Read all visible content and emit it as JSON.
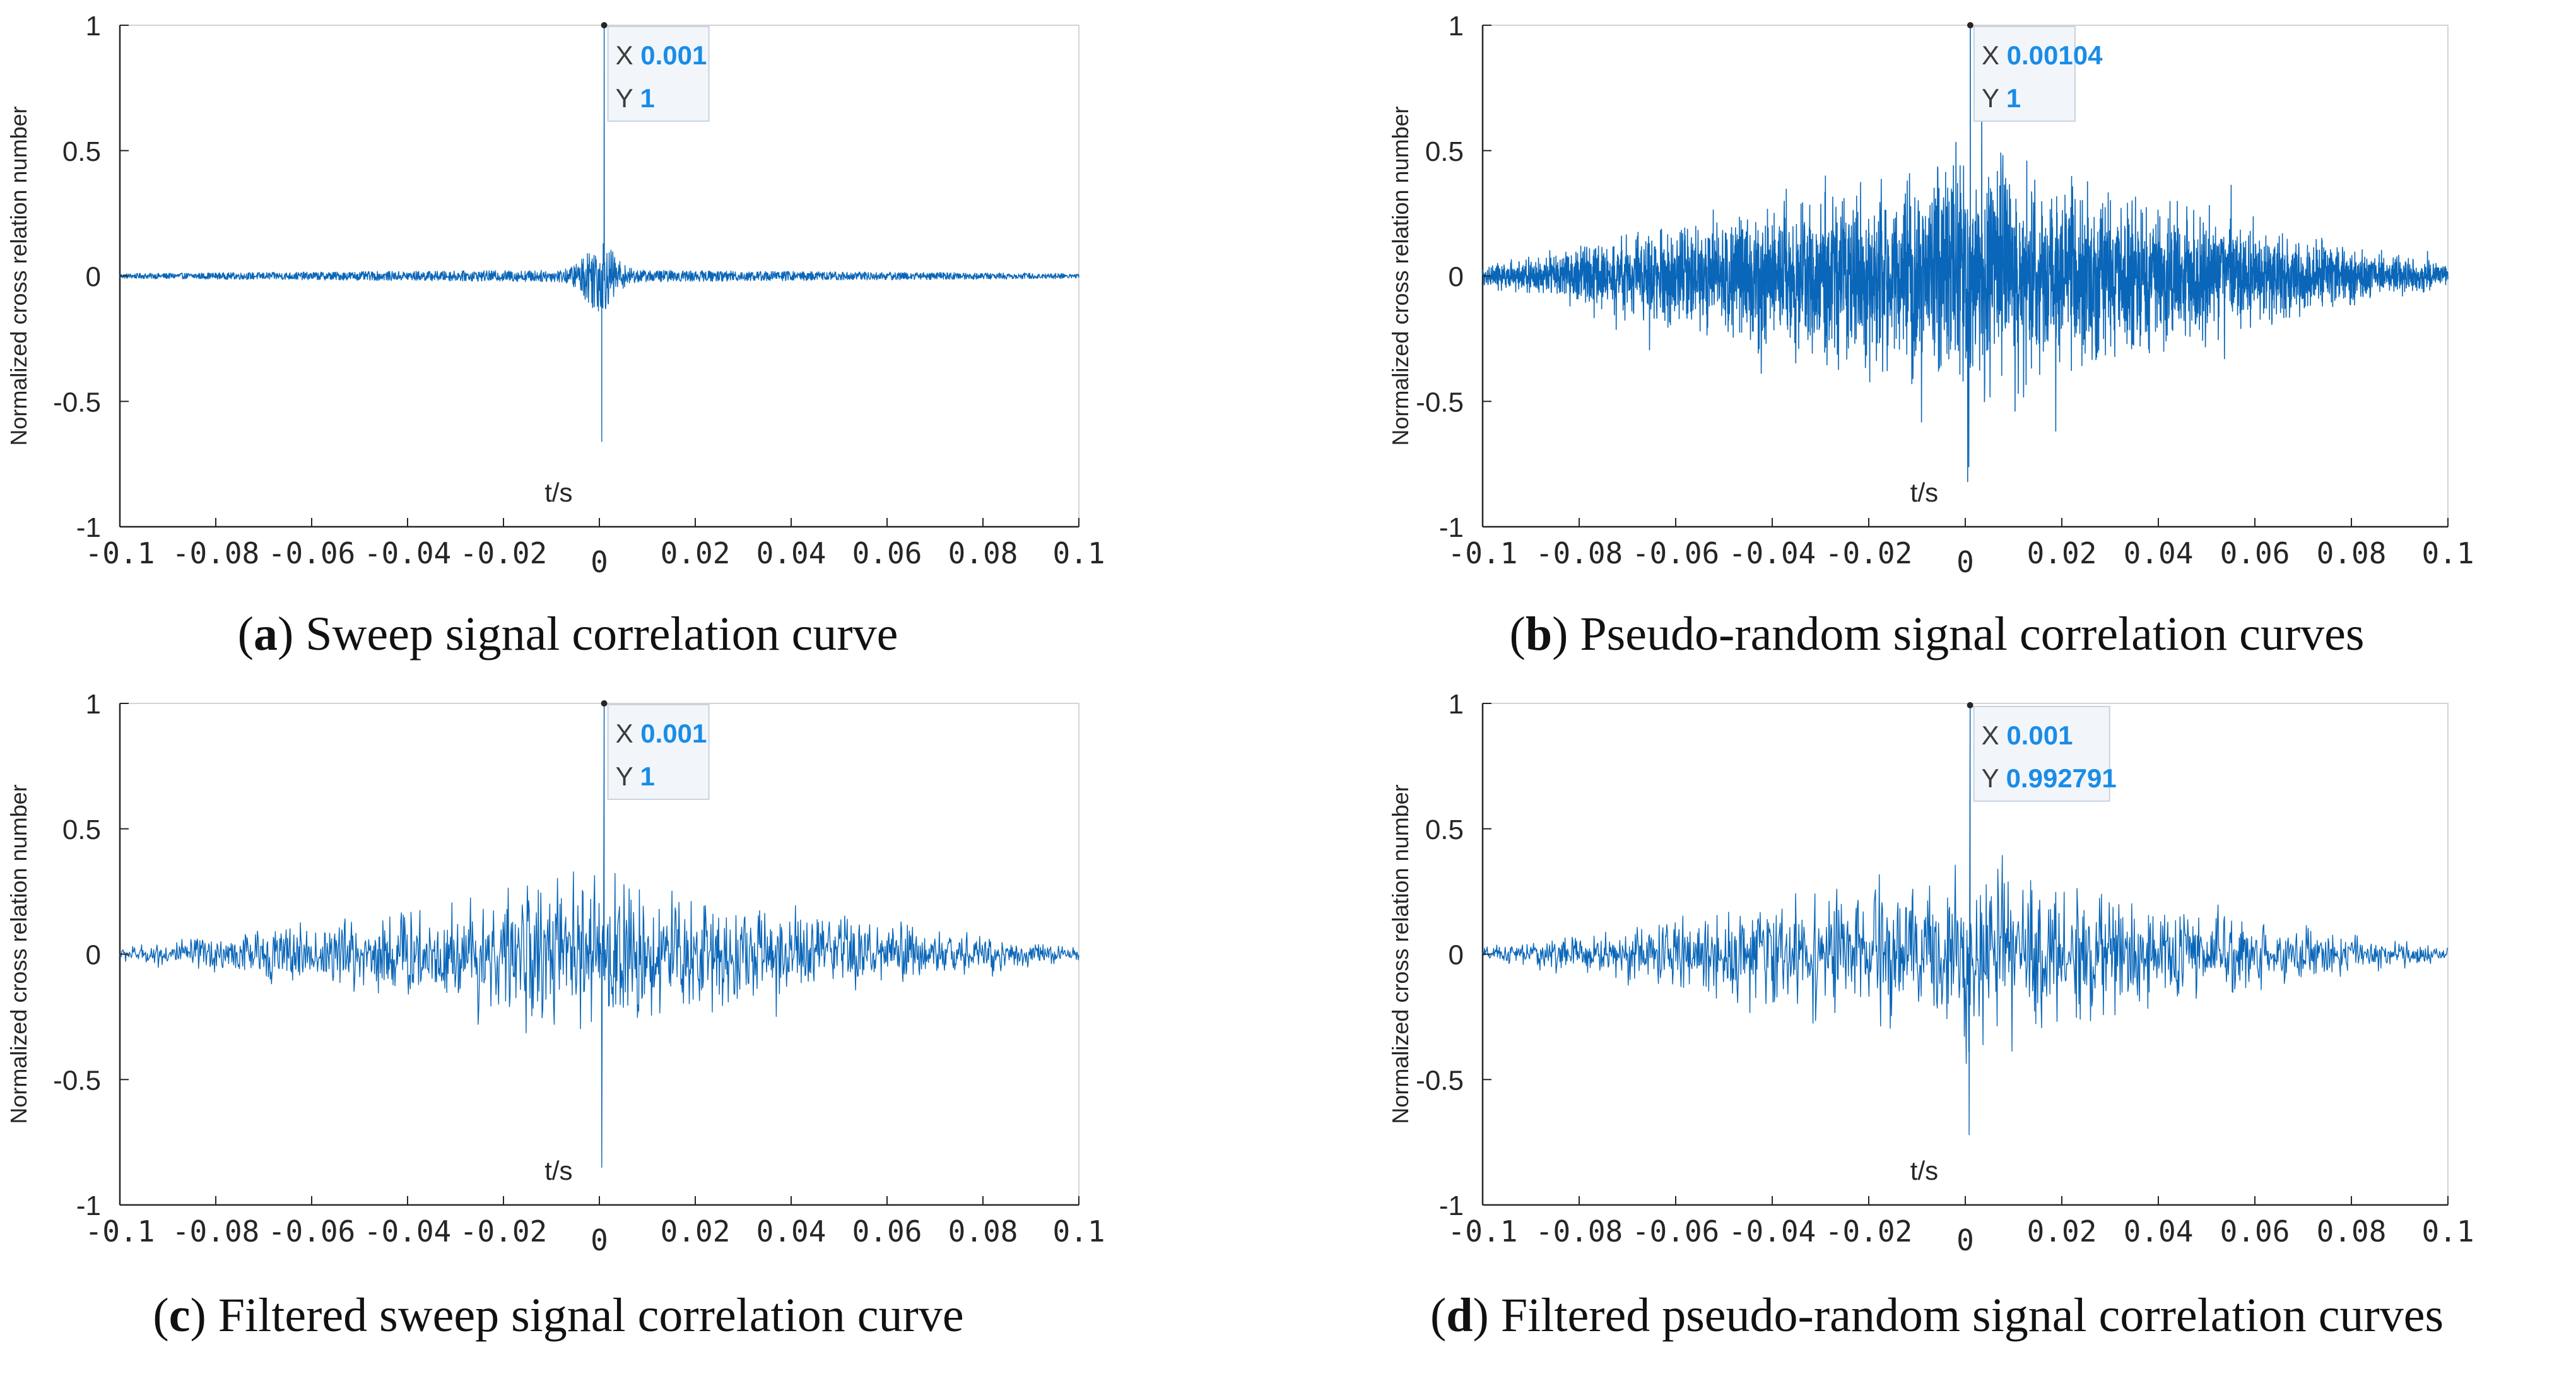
{
  "colors": {
    "signal": "#0a66b8",
    "axis": "#262626",
    "datatip_value": "#1a8ce6",
    "datatip_bg": "#f2f6fb"
  },
  "chart_data": [
    {
      "id": "a",
      "type": "line",
      "caption_letter": "a",
      "caption_text": ") Sweep signal correlation curve",
      "xlabel": "t/s",
      "ylabel": "Normalized cross relation number",
      "xlim": [
        -0.1,
        0.1
      ],
      "ylim": [
        -1,
        1
      ],
      "xticks": [
        -0.1,
        -0.08,
        -0.06,
        -0.04,
        -0.02,
        0,
        0.02,
        0.04,
        0.06,
        0.08,
        0.1
      ],
      "xtick_labels": [
        "-0.1",
        "-0.08",
        "-0.06",
        "-0.04",
        "-0.02",
        "0",
        "0.02",
        "0.04",
        "0.06",
        "0.08",
        "0.1"
      ],
      "yticks": [
        -1,
        -0.5,
        0,
        0.5,
        1
      ],
      "ytick_labels": [
        "-1",
        "-0.5",
        "0",
        "0.5",
        "1"
      ],
      "datatip": {
        "x_label": "X",
        "x_value": "0.001",
        "y_label": "Y",
        "y_value": "1",
        "x": 0.001,
        "y": 1
      },
      "series": {
        "style": "sweep",
        "peak": {
          "x": 0.001,
          "y": 1
        },
        "trough": {
          "x": 0.0005,
          "y": -0.66
        },
        "noise_amplitude": 0.025,
        "near_peak_amplitude": 0.12
      }
    },
    {
      "id": "b",
      "type": "line",
      "caption_letter": "b",
      "caption_text": ") Pseudo-random signal correlation curves",
      "xlabel": "t/s",
      "ylabel": "Normalized cross relation number",
      "xlim": [
        -0.1,
        0.1
      ],
      "ylim": [
        -1,
        1
      ],
      "xticks": [
        -0.1,
        -0.08,
        -0.06,
        -0.04,
        -0.02,
        0,
        0.02,
        0.04,
        0.06,
        0.08,
        0.1
      ],
      "xtick_labels": [
        "-0.1",
        "-0.08",
        "-0.06",
        "-0.04",
        "-0.02",
        "0",
        "0.02",
        "0.04",
        "0.06",
        "0.08",
        "0.1"
      ],
      "yticks": [
        -1,
        -0.5,
        0,
        0.5,
        1
      ],
      "ytick_labels": [
        "-1",
        "-0.5",
        "0",
        "0.5",
        "1"
      ],
      "datatip": {
        "x_label": "X",
        "x_value": "0.00104",
        "y_label": "Y",
        "y_value": "1",
        "x": 0.00104,
        "y": 1
      },
      "series": {
        "style": "dense",
        "peak": {
          "x": 0.00104,
          "y": 1
        },
        "trough": {
          "x": 0.0005,
          "y": -0.82
        },
        "envelope_center": 0.32,
        "envelope_edge": 0.03
      }
    },
    {
      "id": "c",
      "type": "line",
      "caption_letter": "c",
      "caption_text": ") Filtered sweep signal correlation curve",
      "xlabel": "t/s",
      "ylabel": "Normalized cross relation number",
      "xlim": [
        -0.1,
        0.1
      ],
      "ylim": [
        -1,
        1
      ],
      "xticks": [
        -0.1,
        -0.08,
        -0.06,
        -0.04,
        -0.02,
        0,
        0.02,
        0.04,
        0.06,
        0.08,
        0.1
      ],
      "xtick_labels": [
        "-0.1",
        "-0.08",
        "-0.06",
        "-0.04",
        "-0.02",
        "0",
        "0.02",
        "0.04",
        "0.06",
        "0.08",
        "0.1"
      ],
      "yticks": [
        -1,
        -0.5,
        0,
        0.5,
        1
      ],
      "ytick_labels": [
        "-1",
        "-0.5",
        "0",
        "0.5",
        "1"
      ],
      "datatip": {
        "x_label": "X",
        "x_value": "0.001",
        "y_label": "Y",
        "y_value": "1",
        "x": 0.001,
        "y": 1
      },
      "series": {
        "style": "filtered",
        "peak": {
          "x": 0.001,
          "y": 1
        },
        "trough": {
          "x": 0.0005,
          "y": -0.85
        },
        "envelope_center": 0.22,
        "envelope_edge": 0.02
      }
    },
    {
      "id": "d",
      "type": "line",
      "caption_letter": "d",
      "caption_text": ") Filtered pseudo-random signal correlation curves",
      "xlabel": "t/s",
      "ylabel": "Normalized cross relation number",
      "xlim": [
        -0.1,
        0.1
      ],
      "ylim": [
        -1,
        1
      ],
      "xticks": [
        -0.1,
        -0.08,
        -0.06,
        -0.04,
        -0.02,
        0,
        0.02,
        0.04,
        0.06,
        0.08,
        0.1
      ],
      "xtick_labels": [
        "-0.1",
        "-0.08",
        "-0.06",
        "-0.04",
        "-0.02",
        "0",
        "0.02",
        "0.04",
        "0.06",
        "0.08",
        "0.1"
      ],
      "yticks": [
        -1,
        -0.5,
        0,
        0.5,
        1
      ],
      "ytick_labels": [
        "-1",
        "-0.5",
        "0",
        "0.5",
        "1"
      ],
      "datatip": {
        "x_label": "X",
        "x_value": "0.001",
        "y_label": "Y",
        "y_value": "0.992791",
        "x": 0.001,
        "y": 0.992791
      },
      "series": {
        "style": "filtered",
        "peak": {
          "x": 0.001,
          "y": 0.992791
        },
        "trough": {
          "x": 0.0008,
          "y": -0.72
        },
        "envelope_center": 0.24,
        "envelope_edge": 0.02
      }
    }
  ]
}
